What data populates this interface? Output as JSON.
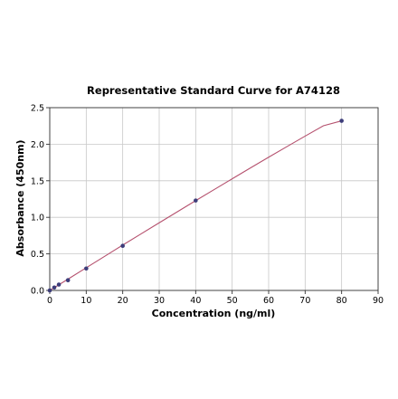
{
  "chart_data": {
    "type": "scatter",
    "title": "Representative Standard Curve for A74128",
    "xlabel": "Concentration (ng/ml)",
    "ylabel": "Absorbance (450nm)",
    "xlim": [
      0,
      90
    ],
    "ylim": [
      0,
      2.5
    ],
    "xticks": [
      0,
      10,
      20,
      30,
      40,
      50,
      60,
      70,
      80,
      90
    ],
    "yticks": [
      0.0,
      0.5,
      1.0,
      1.5,
      2.0,
      2.5
    ],
    "xtick_labels": [
      "0",
      "10",
      "20",
      "30",
      "40",
      "50",
      "60",
      "70",
      "80",
      "90"
    ],
    "ytick_labels": [
      "0.0",
      "0.5",
      "1.0",
      "1.5",
      "2.0",
      "2.5"
    ],
    "grid": true,
    "point_color": "#3d3d7a",
    "curve_color": "#b5516e",
    "series": [
      {
        "x": [
          0,
          1.25,
          2.5,
          5,
          10,
          20,
          40,
          80
        ],
        "y": [
          0.0,
          0.04,
          0.08,
          0.14,
          0.3,
          0.61,
          1.23,
          2.32
        ]
      }
    ],
    "fit_curve": {
      "x": [
        0,
        5,
        10,
        15,
        20,
        25,
        30,
        35,
        40,
        45,
        50,
        55,
        60,
        65,
        70,
        75,
        80
      ],
      "y": [
        0.0,
        0.155,
        0.31,
        0.465,
        0.62,
        0.773,
        0.925,
        1.077,
        1.228,
        1.378,
        1.527,
        1.675,
        1.822,
        1.967,
        2.111,
        2.253,
        2.32
      ]
    }
  }
}
